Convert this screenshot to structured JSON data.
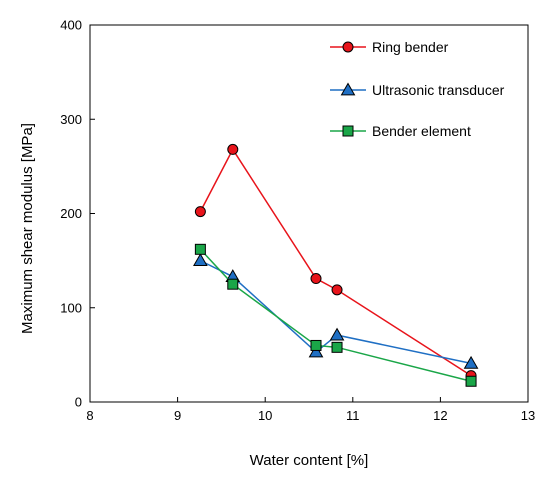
{
  "chart_data": {
    "type": "line",
    "xlabel": "Water content [%]",
    "ylabel": "Maximum shear modulus [MPa]",
    "xlim": [
      8,
      13
    ],
    "ylim": [
      0,
      400
    ],
    "xticks": [
      8,
      9,
      10,
      11,
      12,
      13
    ],
    "yticks": [
      0,
      100,
      200,
      300,
      400
    ],
    "grid": false,
    "legend_position": "top-right",
    "series": [
      {
        "name": "Ring bender",
        "color": "#e8141b",
        "marker": "circle",
        "x": [
          9.26,
          9.63,
          10.58,
          10.82,
          12.35
        ],
        "y": [
          202,
          268,
          131,
          119,
          28
        ]
      },
      {
        "name": "Ultrasonic transducer",
        "color": "#1f6fc4",
        "marker": "triangle",
        "x": [
          9.26,
          9.63,
          10.58,
          10.82,
          12.35
        ],
        "y": [
          150,
          133,
          53,
          71,
          41
        ]
      },
      {
        "name": "Bender element",
        "color": "#1aa648",
        "marker": "square",
        "x": [
          9.26,
          9.63,
          10.58,
          10.82,
          12.35
        ],
        "y": [
          162,
          125,
          60,
          58,
          22
        ]
      }
    ]
  }
}
